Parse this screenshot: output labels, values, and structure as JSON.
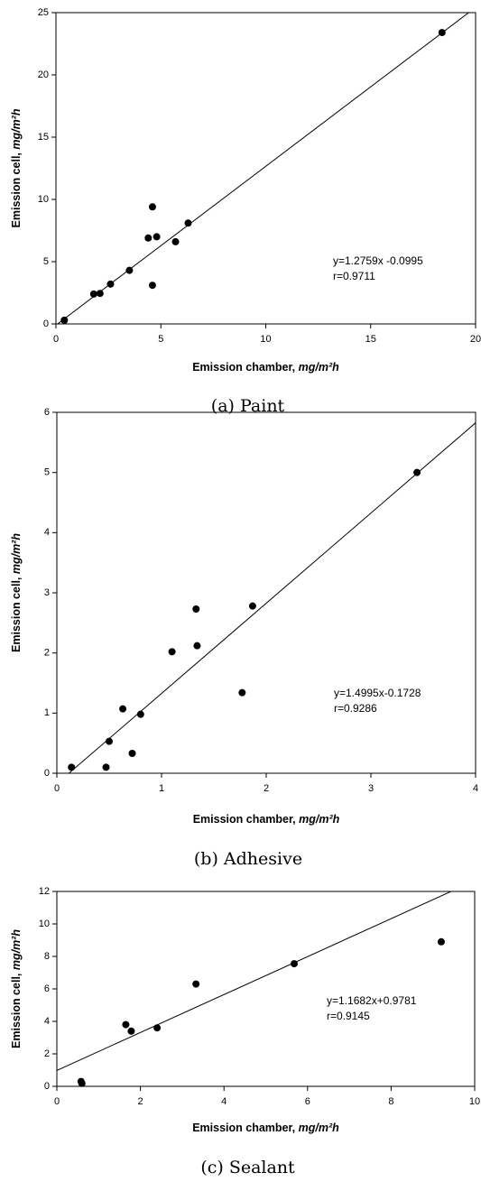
{
  "chart_data": [
    {
      "type": "scatter",
      "caption": "(a) Paint",
      "xlabel": {
        "text": "Emission chamber, ",
        "unit": "mg/m²h"
      },
      "ylabel": {
        "text": "Emission cell, ",
        "unit": "mg/m²h"
      },
      "x": [
        0.4,
        1.8,
        2.1,
        2.6,
        3.5,
        4.4,
        4.6,
        4.6,
        4.8,
        5.7,
        6.3,
        18.4
      ],
      "y": [
        0.3,
        2.4,
        2.45,
        3.2,
        4.3,
        6.9,
        9.4,
        3.1,
        7.0,
        6.6,
        8.1,
        23.4
      ],
      "color": "#000000",
      "xlim": [
        0,
        20
      ],
      "ylim": [
        0,
        25
      ],
      "xticks": [
        0,
        5,
        10,
        15,
        20
      ],
      "yticks": [
        0,
        5,
        10,
        15,
        20,
        25
      ],
      "fit": {
        "slope": 1.2759,
        "intercept": -0.0995
      },
      "annotations": [
        "y=1.2759x -0.0995",
        "r=0.9711"
      ]
    },
    {
      "type": "scatter",
      "caption": "(b) Adhesive",
      "xlabel": {
        "text": "Emission chamber, ",
        "unit": "mg/m²h"
      },
      "ylabel": {
        "text": "Emission cell, ",
        "unit": "mg/m²h"
      },
      "x": [
        0.14,
        0.47,
        0.5,
        0.63,
        0.72,
        0.8,
        1.1,
        1.33,
        1.34,
        1.77,
        1.87,
        3.44
      ],
      "y": [
        0.1,
        0.1,
        0.53,
        1.07,
        0.33,
        0.98,
        2.02,
        2.73,
        2.12,
        1.34,
        2.78,
        5.0
      ],
      "color": "#000000",
      "xlim": [
        0,
        4
      ],
      "ylim": [
        0,
        6
      ],
      "xticks": [
        0,
        1,
        2,
        3,
        4
      ],
      "yticks": [
        0,
        1,
        2,
        3,
        4,
        5,
        6
      ],
      "fit": {
        "slope": 1.4995,
        "intercept": -0.1728
      },
      "annotations": [
        "y=1.4995x-0.1728",
        "r=0.9286"
      ]
    },
    {
      "type": "scatter",
      "caption": "(c) Sealant",
      "xlabel": {
        "text": "Emission chamber, ",
        "unit": "mg/m²h"
      },
      "ylabel": {
        "text": "Emission cell, ",
        "unit": "mg/m²h"
      },
      "x": [
        0.58,
        0.6,
        1.65,
        1.78,
        2.4,
        3.33,
        5.68,
        9.2
      ],
      "y": [
        0.3,
        0.18,
        3.8,
        3.4,
        3.6,
        6.3,
        7.55,
        8.9
      ],
      "color": "#000000",
      "xlim": [
        0,
        10
      ],
      "ylim": [
        0,
        12
      ],
      "xticks": [
        0,
        2,
        4,
        6,
        8,
        10
      ],
      "yticks": [
        0,
        2,
        4,
        6,
        8,
        10,
        12
      ],
      "fit": {
        "slope": 1.1682,
        "intercept": 0.9781
      },
      "annotations": [
        "y=1.1682x+0.9781",
        "r=0.9145"
      ]
    }
  ]
}
